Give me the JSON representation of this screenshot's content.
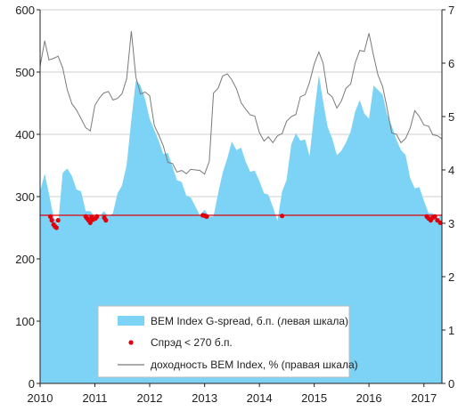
{
  "chart_data": {
    "type": "area",
    "title": "",
    "x_axis": {
      "type": "date",
      "range": [
        "2010-01-01",
        "2017-05-01"
      ],
      "ticks": [
        "2010",
        "2011",
        "2012",
        "2013",
        "2014",
        "2015",
        "2016",
        "2017"
      ]
    },
    "y_axis_left": {
      "range": [
        0,
        600
      ],
      "ticks": [
        "0",
        "100",
        "200",
        "300",
        "400",
        "500",
        "600"
      ]
    },
    "y_axis_right": {
      "range": [
        0,
        7
      ],
      "ticks": [
        "0",
        "1",
        "2",
        "3",
        "4",
        "5",
        "6",
        "7"
      ]
    },
    "threshold": {
      "value": 270,
      "axis": "left",
      "color": "#e0000b"
    },
    "grid": "horizontal",
    "legend": {
      "placement": "bottom-center",
      "entries": [
        {
          "label": "BEM Index G-spread, б.п. (левая шкала)",
          "marker": "area",
          "color": "#7dd3f5"
        },
        {
          "label": "Спрэд < 270 б.п.",
          "marker": "dot",
          "color": "#e0000b"
        },
        {
          "label": "доходность BEM Index, % (правая шкала)",
          "marker": "line",
          "color": "#7a7a7a"
        }
      ]
    },
    "series": [
      {
        "name": "BEM Index G-spread, б.п. (левая шкала)",
        "axis": "left",
        "kind": "area",
        "color": "#7dd3f5",
        "x": [
          "2010-01-01",
          "2010-02-01",
          "2010-03-01",
          "2010-04-01",
          "2010-05-01",
          "2010-06-01",
          "2010-07-01",
          "2010-08-01",
          "2010-09-01",
          "2010-10-01",
          "2010-11-01",
          "2010-12-01",
          "2011-01-01",
          "2011-02-01",
          "2011-03-01",
          "2011-04-01",
          "2011-05-01",
          "2011-06-01",
          "2011-07-01",
          "2011-08-01",
          "2011-09-01",
          "2011-10-01",
          "2011-11-01",
          "2011-12-01",
          "2012-01-01",
          "2012-02-01",
          "2012-03-01",
          "2012-04-01",
          "2012-05-01",
          "2012-06-01",
          "2012-07-01",
          "2012-08-01",
          "2012-09-01",
          "2012-10-01",
          "2012-11-01",
          "2012-12-01",
          "2013-01-01",
          "2013-02-01",
          "2013-03-01",
          "2013-04-01",
          "2013-05-01",
          "2013-06-01",
          "2013-07-01",
          "2013-08-01",
          "2013-09-01",
          "2013-10-01",
          "2013-11-01",
          "2013-12-01",
          "2014-01-01",
          "2014-02-01",
          "2014-03-01",
          "2014-04-01",
          "2014-05-01",
          "2014-06-01",
          "2014-07-01",
          "2014-08-01",
          "2014-09-01",
          "2014-10-01",
          "2014-11-01",
          "2014-12-01",
          "2015-01-01",
          "2015-02-01",
          "2015-03-01",
          "2015-04-01",
          "2015-05-01",
          "2015-06-01",
          "2015-07-01",
          "2015-08-01",
          "2015-09-01",
          "2015-10-01",
          "2015-11-01",
          "2015-12-01",
          "2016-01-01",
          "2016-02-01",
          "2016-03-01",
          "2016-04-01",
          "2016-05-01",
          "2016-06-01",
          "2016-07-01",
          "2016-08-01",
          "2016-09-01",
          "2016-10-01",
          "2016-11-01",
          "2016-12-01",
          "2017-01-01",
          "2017-02-01",
          "2017-03-01",
          "2017-04-01",
          "2017-05-01"
        ],
        "values": [
          300,
          335,
          310,
          260,
          255,
          345,
          340,
          335,
          320,
          305,
          280,
          268,
          266,
          272,
          270,
          268,
          280,
          300,
          320,
          360,
          420,
          490,
          470,
          455,
          430,
          400,
          390,
          375,
          365,
          350,
          335,
          320,
          305,
          290,
          282,
          275,
          272,
          268,
          275,
          300,
          340,
          370,
          385,
          378,
          370,
          355,
          345,
          335,
          325,
          312,
          298,
          285,
          270,
          305,
          330,
          375,
          400,
          395,
          385,
          365,
          440,
          490,
          455,
          420,
          390,
          370,
          365,
          385,
          410,
          430,
          455,
          440,
          420,
          480,
          480,
          460,
          435,
          405,
          390,
          380,
          360,
          330,
          320,
          310,
          295,
          282,
          270,
          266,
          265
        ]
      },
      {
        "name": "доходность BEM Index, % (правая шкала)",
        "axis": "right",
        "kind": "line",
        "color": "#7a7a7a",
        "x": [
          "2010-01-01",
          "2010-02-01",
          "2010-03-01",
          "2010-04-01",
          "2010-05-01",
          "2010-06-01",
          "2010-07-01",
          "2010-08-01",
          "2010-09-01",
          "2010-10-01",
          "2010-11-01",
          "2010-12-01",
          "2011-01-01",
          "2011-02-01",
          "2011-03-01",
          "2011-04-01",
          "2011-05-01",
          "2011-06-01",
          "2011-07-01",
          "2011-08-01",
          "2011-09-01",
          "2011-10-01",
          "2011-11-01",
          "2011-12-01",
          "2012-01-01",
          "2012-02-01",
          "2012-03-01",
          "2012-04-01",
          "2012-05-01",
          "2012-06-01",
          "2012-07-01",
          "2012-08-01",
          "2012-09-01",
          "2012-10-01",
          "2012-11-01",
          "2012-12-01",
          "2013-01-01",
          "2013-02-01",
          "2013-03-01",
          "2013-04-01",
          "2013-05-01",
          "2013-06-01",
          "2013-07-01",
          "2013-08-01",
          "2013-09-01",
          "2013-10-01",
          "2013-11-01",
          "2013-12-01",
          "2014-01-01",
          "2014-02-01",
          "2014-03-01",
          "2014-04-01",
          "2014-05-01",
          "2014-06-01",
          "2014-07-01",
          "2014-08-01",
          "2014-09-01",
          "2014-10-01",
          "2014-11-01",
          "2014-12-01",
          "2015-01-01",
          "2015-02-01",
          "2015-03-01",
          "2015-04-01",
          "2015-05-01",
          "2015-06-01",
          "2015-07-01",
          "2015-08-01",
          "2015-09-01",
          "2015-10-01",
          "2015-11-01",
          "2015-12-01",
          "2016-01-01",
          "2016-02-01",
          "2016-03-01",
          "2016-04-01",
          "2016-05-01",
          "2016-06-01",
          "2016-07-01",
          "2016-08-01",
          "2016-09-01",
          "2016-10-01",
          "2016-11-01",
          "2016-12-01",
          "2017-01-01",
          "2017-02-01",
          "2017-03-01",
          "2017-04-01",
          "2017-05-01"
        ],
        "values": [
          6.0,
          6.4,
          6.1,
          6.05,
          6.15,
          5.85,
          5.5,
          5.3,
          5.1,
          5.0,
          4.75,
          4.75,
          5.15,
          5.35,
          5.5,
          5.45,
          5.35,
          5.3,
          5.45,
          5.65,
          6.6,
          5.8,
          5.4,
          5.5,
          5.35,
          4.85,
          4.6,
          4.45,
          4.2,
          4.1,
          4.0,
          3.95,
          3.95,
          3.95,
          4.0,
          4.05,
          3.9,
          4.2,
          5.4,
          5.55,
          5.7,
          5.8,
          5.75,
          5.5,
          5.3,
          5.1,
          5.05,
          4.95,
          4.7,
          4.6,
          4.6,
          4.55,
          4.6,
          4.7,
          4.85,
          5.0,
          5.1,
          5.35,
          5.45,
          5.6,
          6.0,
          6.15,
          6.0,
          5.5,
          5.35,
          5.2,
          5.25,
          5.55,
          5.55,
          6.0,
          6.3,
          6.2,
          6.6,
          6.1,
          5.8,
          5.5,
          5.15,
          4.75,
          4.65,
          4.55,
          4.55,
          4.8,
          5.05,
          5.0,
          4.9,
          4.8,
          4.7,
          4.6,
          4.6
        ]
      },
      {
        "name": "Спрэд < 270 б.п.",
        "axis": "left",
        "kind": "dots",
        "color": "#e0000b",
        "x": [
          "2010-03-10",
          "2010-03-20",
          "2010-04-01",
          "2010-04-10",
          "2010-04-20",
          "2010-05-01",
          "2010-11-01",
          "2010-11-10",
          "2010-11-20",
          "2010-12-01",
          "2010-12-10",
          "2010-12-20",
          "2011-01-05",
          "2011-01-15",
          "2011-03-05",
          "2011-03-15",
          "2012-12-20",
          "2013-01-05",
          "2013-01-15",
          "2014-06-01",
          "2017-01-20",
          "2017-02-01",
          "2017-02-15",
          "2017-03-01",
          "2017-03-15",
          "2017-04-01",
          "2017-04-20"
        ],
        "values": [
          268,
          262,
          255,
          252,
          250,
          262,
          268,
          265,
          262,
          258,
          267,
          263,
          265,
          268,
          266,
          262,
          270,
          269,
          268,
          269,
          268,
          265,
          262,
          266,
          268,
          262,
          258
        ]
      }
    ]
  }
}
